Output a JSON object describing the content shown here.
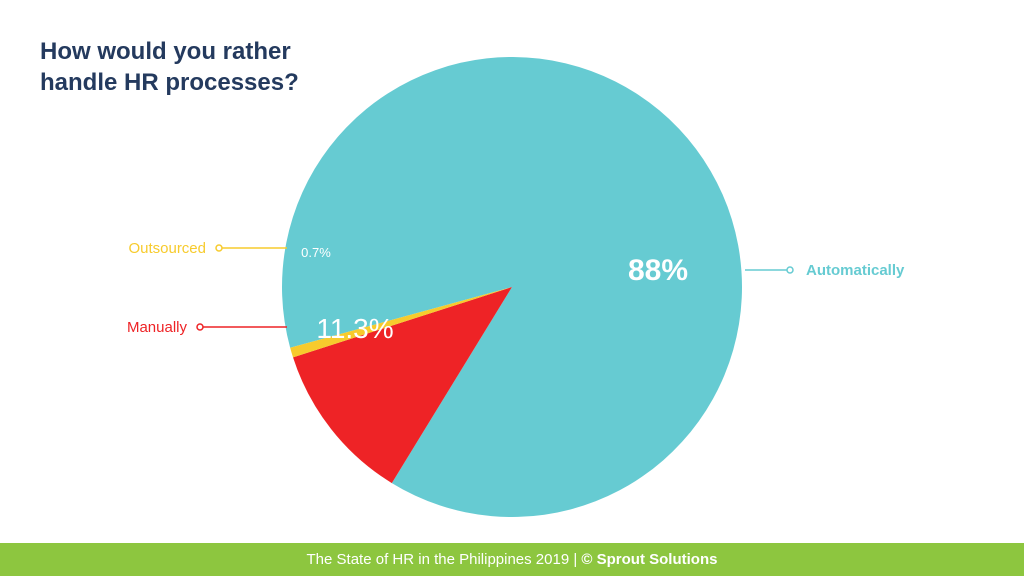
{
  "chart_data": {
    "type": "pie",
    "title": "How would you rather handle HR processes?",
    "slices": [
      {
        "label": "Automatically",
        "value": 88,
        "value_label": "88%",
        "color": "#66cbd2"
      },
      {
        "label": "Manually",
        "value": 11.3,
        "value_label": "11.3%",
        "color": "#ee2326"
      },
      {
        "label": "Outsourced",
        "value": 0.7,
        "value_label": "0.7%",
        "color": "#f7cb2d"
      }
    ],
    "legend": "callout-labels"
  },
  "footer": {
    "text": "The State of HR in the Philippines 2019 | ",
    "brand": "© Sprout Solutions"
  },
  "colors": {
    "title": "#243a5e",
    "footer_bg": "#8dc63f"
  }
}
